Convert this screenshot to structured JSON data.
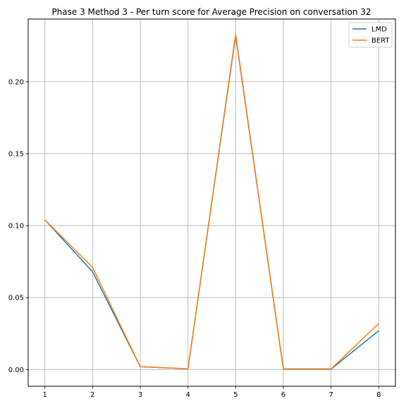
{
  "chart_data": {
    "type": "line",
    "title": "Phase 3 Method 3 - Per turn score for Average Precision on conversation 32",
    "xlabel": "",
    "ylabel": "",
    "x": [
      1,
      2,
      3,
      4,
      5,
      6,
      7,
      8
    ],
    "xticks": [
      "1",
      "2",
      "3",
      "4",
      "5",
      "6",
      "7",
      "8"
    ],
    "yticks": [
      "0.00",
      "0.05",
      "0.10",
      "0.15",
      "0.20"
    ],
    "ytick_values": [
      0.0,
      0.05,
      0.1,
      0.15,
      0.2
    ],
    "xlim": [
      0.65,
      8.35
    ],
    "ylim": [
      -0.0116,
      0.2435
    ],
    "grid": true,
    "legend_position": "top-right",
    "series": [
      {
        "name": "LMD",
        "color": "#1f77b4",
        "values": [
          0.104,
          0.068,
          0.002,
          0.0005,
          0.232,
          0.0003,
          0.0003,
          0.027
        ]
      },
      {
        "name": "BERT",
        "color": "#ff7f0e",
        "values": [
          0.104,
          0.071,
          0.002,
          0.0005,
          0.233,
          0.0005,
          0.0005,
          0.032
        ]
      }
    ]
  }
}
